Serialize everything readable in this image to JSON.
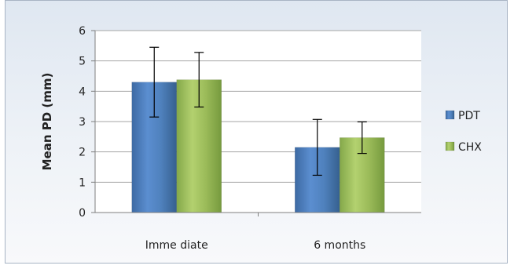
{
  "chart_data": {
    "type": "bar",
    "categories": [
      "Imme diate",
      "6 months"
    ],
    "series": [
      {
        "name": "PDT",
        "values": [
          4.3,
          2.15
        ],
        "error": [
          1.15,
          0.92
        ],
        "color": "#4f81bd"
      },
      {
        "name": "CHX",
        "values": [
          4.38,
          2.47
        ],
        "error": [
          0.9,
          0.52
        ],
        "color": "#9bbb59"
      }
    ],
    "title": "",
    "xlabel": "",
    "ylabel": "Mean PD (mm)",
    "ylim": [
      0,
      6
    ],
    "yticks": [
      0,
      1,
      2,
      3,
      4,
      5,
      6
    ],
    "grid": true,
    "legend": "right"
  }
}
